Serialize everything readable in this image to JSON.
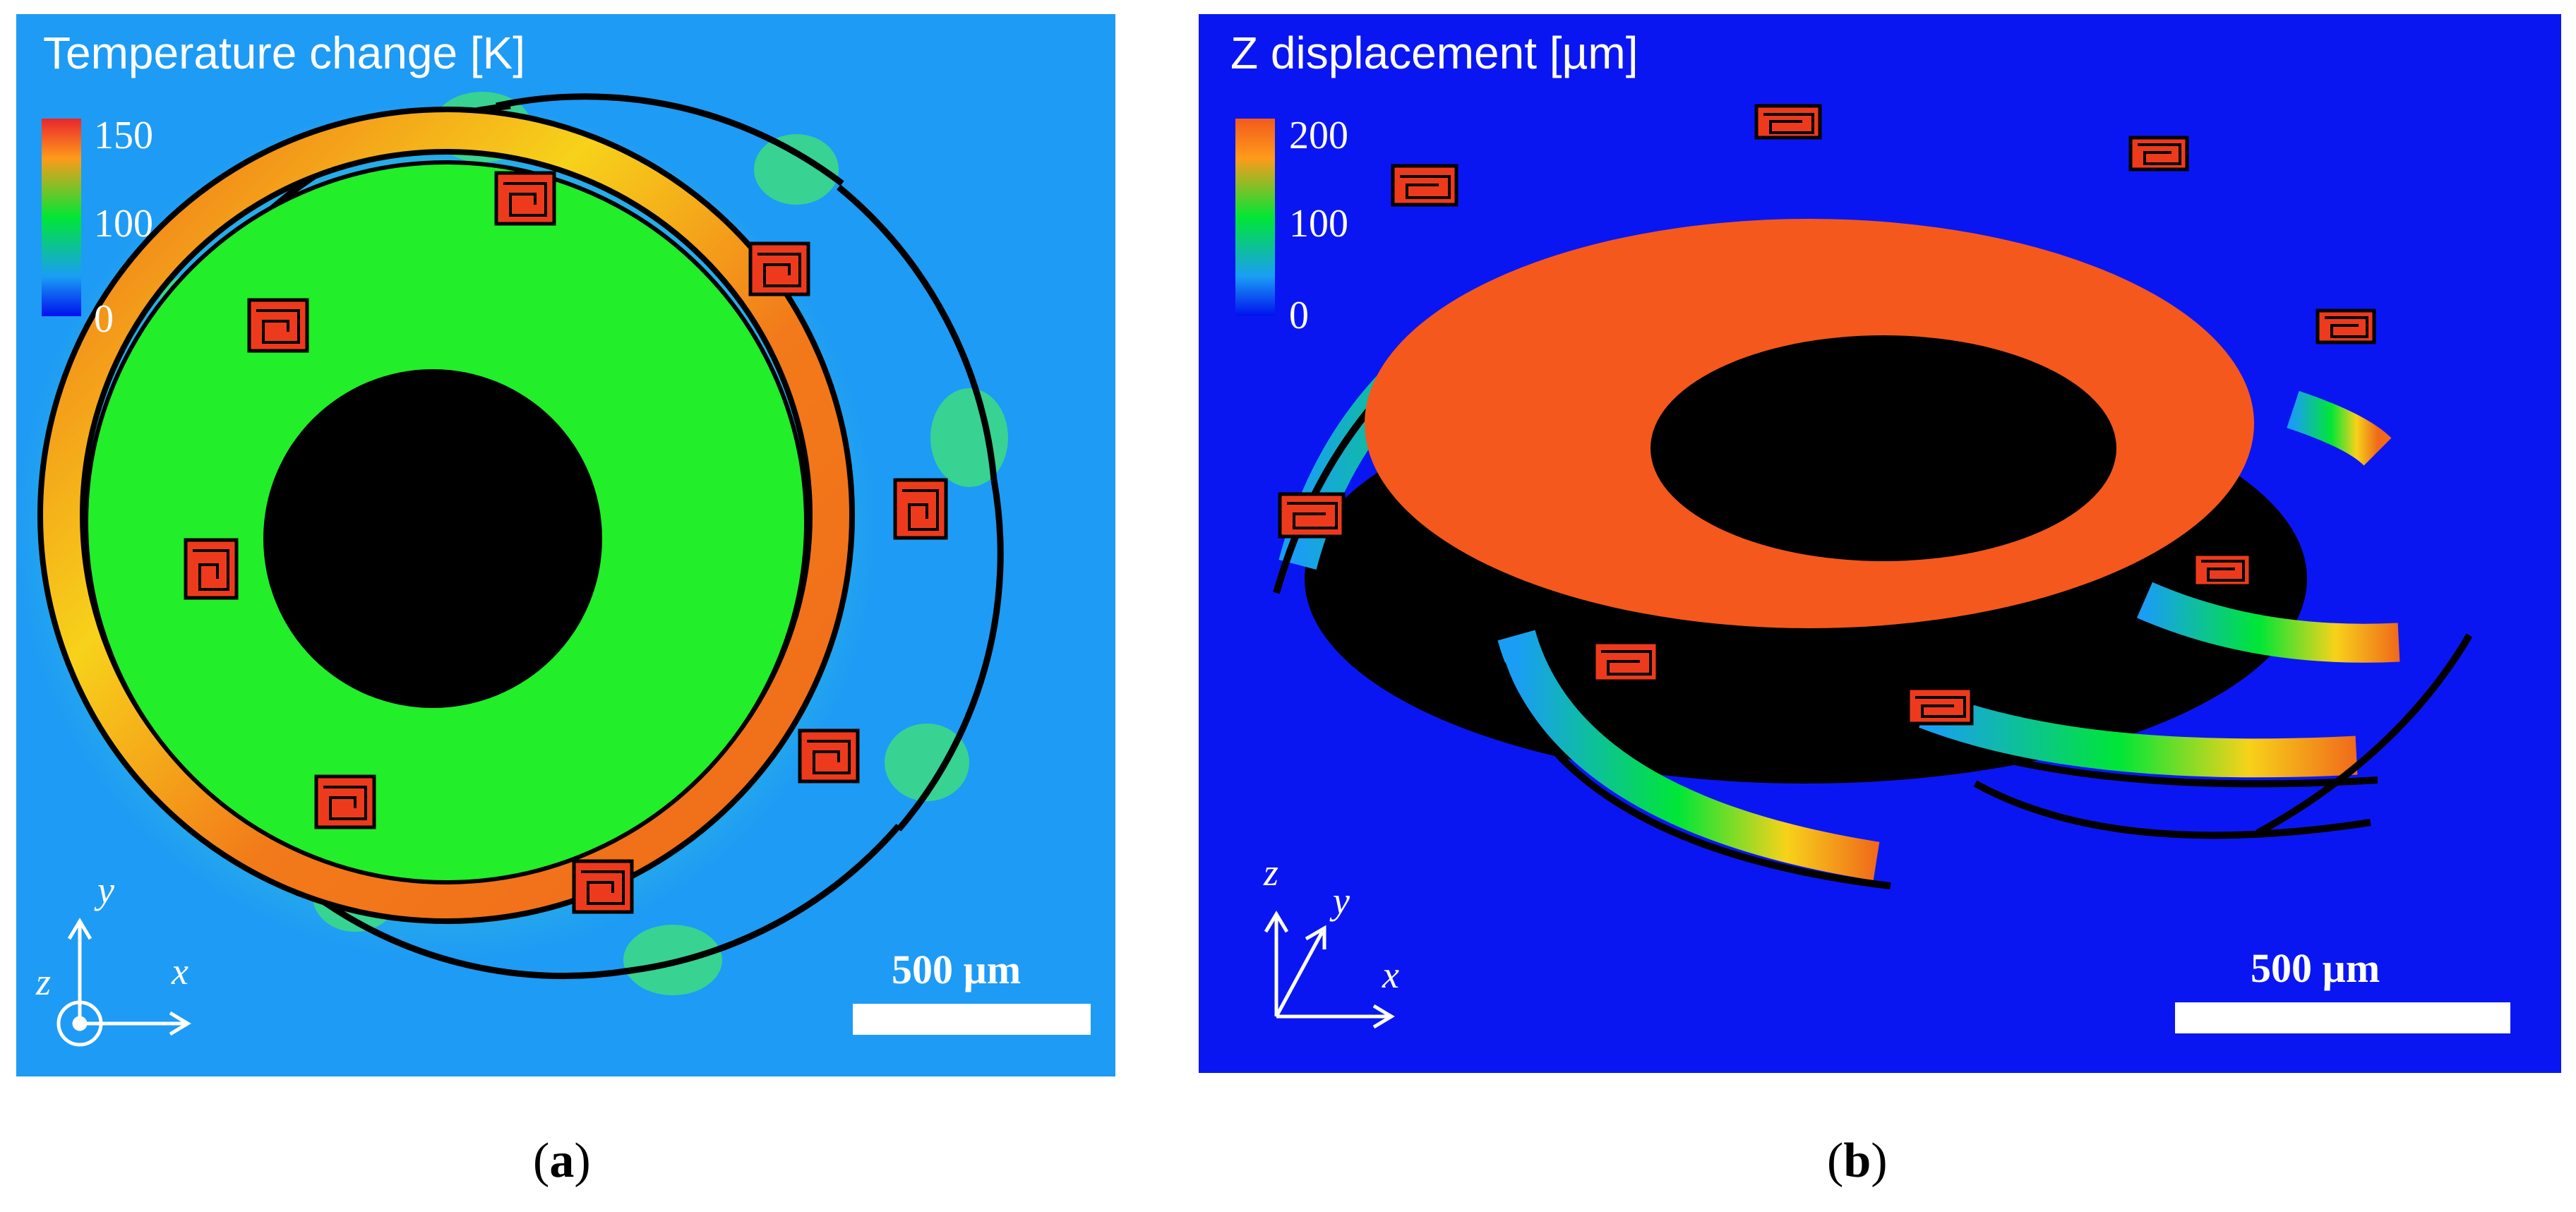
{
  "panel_a": {
    "title": "Temperature change [K]",
    "colorbar": {
      "labels": [
        "150",
        "100",
        "0"
      ],
      "colors": [
        "#e8262d",
        "#ff9a1a",
        "#00e636",
        "#1a9df5",
        "#0010ee"
      ]
    },
    "scale_bar": "500 µm",
    "axes": {
      "x": "x",
      "y": "y",
      "z": "z"
    },
    "caption": "a",
    "background_color": "#1e9bf5",
    "plate_color": "#22ee2a"
  },
  "panel_b": {
    "title": "Z displacement [µm]",
    "colorbar": {
      "labels": [
        "200",
        "100",
        "0"
      ],
      "colors": [
        "#f25a1c",
        "#ff9a1a",
        "#00e636",
        "#1a9df5",
        "#0010ee"
      ]
    },
    "scale_bar": "500 µm",
    "axes": {
      "x": "x",
      "y": "y",
      "z": "z"
    },
    "caption": "b",
    "background_color": "#0a16f2",
    "plate_color": "#f5581c"
  }
}
